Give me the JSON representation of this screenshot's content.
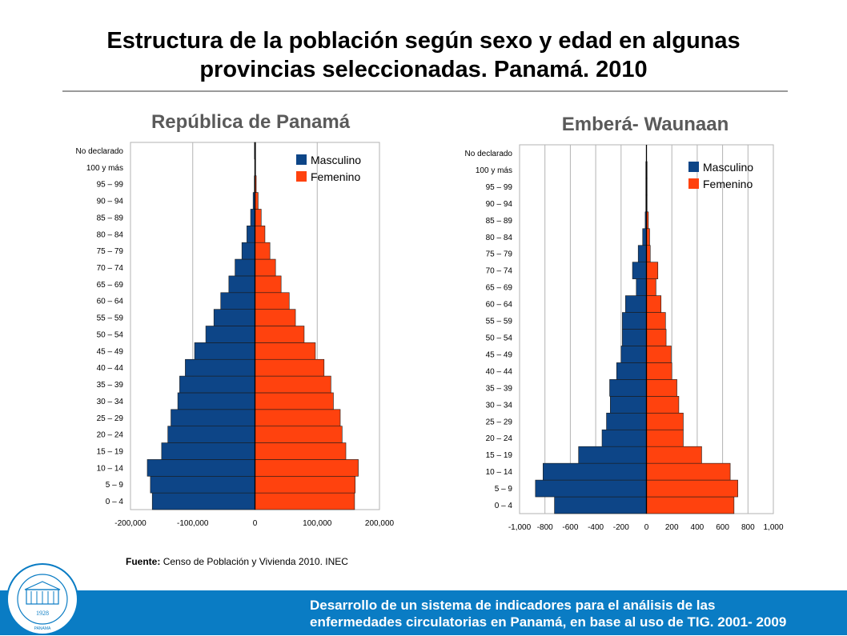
{
  "title_line1": "Estructura de la población según sexo y edad en algunas",
  "title_line2": "provincias seleccionadas. Panamá. 2010",
  "source_label": "Fuente:",
  "source_text": "Censo de Población y Vivienda  2010. INEC",
  "footer_line1": "Desarrollo de un sistema de indicadores para el análisis de las",
  "footer_line2": "enfermedades circulatorias en Panamá, en base al uso de TIG. 2001- 2009",
  "logo": {
    "ring_text": "INSTITUTO CONMEMORATIVO GORGAS DE ESTUDIOS DE LA SALUD",
    "year": "1928",
    "place": "PANAMA"
  },
  "colors": {
    "male": "#0d4587",
    "female": "#ff420e",
    "footer": "#0a7cc4"
  },
  "chart_data": [
    {
      "type": "bar",
      "orientation": "horizontal",
      "title": "República de Panamá",
      "categories": [
        "0 – 4",
        "5 – 9",
        "10 – 14",
        "15 – 19",
        "20 – 24",
        "25 – 29",
        "30 – 34",
        "35 – 39",
        "40 – 44",
        "45 – 49",
        "50 – 54",
        "55 – 59",
        "60 – 64",
        "65 – 69",
        "70 – 74",
        "75 – 79",
        "80 – 84",
        "85 – 89",
        "90 – 94",
        "95 – 99",
        "100 y más",
        "No declarado"
      ],
      "series": [
        {
          "name": "Masculino",
          "values": [
            -165000,
            -168000,
            -173000,
            -150000,
            -140000,
            -135000,
            -124000,
            -121000,
            -112000,
            -97000,
            -79000,
            -66000,
            -55000,
            -42000,
            -32000,
            -21000,
            -13000,
            -7000,
            -3000,
            -1000,
            -300,
            -800
          ]
        },
        {
          "name": "Femenino",
          "values": [
            160000,
            161000,
            166000,
            146000,
            140000,
            137000,
            126000,
            122000,
            111000,
            97000,
            79000,
            65000,
            55000,
            42000,
            33000,
            24000,
            16000,
            10000,
            5000,
            2000,
            600,
            800
          ]
        }
      ],
      "xlim": [
        -200000,
        200000
      ],
      "xticks": [
        -200000,
        -100000,
        0,
        100000,
        200000
      ],
      "xtick_labels": [
        "-200,000",
        "-100,000",
        "0",
        "100,000",
        "200,000"
      ],
      "legend": "top-right",
      "grid": true
    },
    {
      "type": "bar",
      "orientation": "horizontal",
      "title": "Emberá- Waunaan",
      "categories": [
        "0 – 4",
        "5 – 9",
        "10 – 14",
        "15 – 19",
        "20 – 24",
        "25 – 29",
        "30 – 34",
        "35 – 39",
        "40 – 44",
        "45 – 49",
        "50 – 54",
        "55 – 59",
        "60 – 64",
        "65 – 69",
        "70 – 74",
        "75 – 79",
        "80 – 84",
        "85 – 89",
        "90 – 94",
        "95 – 99",
        "100 y más",
        "No declarado"
      ],
      "series": [
        {
          "name": "Masculino",
          "values": [
            -725,
            -875,
            -815,
            -535,
            -350,
            -315,
            -285,
            -290,
            -235,
            -200,
            -190,
            -190,
            -165,
            -80,
            -110,
            -65,
            -30,
            -10,
            -5,
            -5,
            -5,
            0
          ]
        },
        {
          "name": "Femenino",
          "values": [
            690,
            720,
            660,
            435,
            290,
            290,
            255,
            240,
            200,
            195,
            155,
            150,
            115,
            75,
            90,
            30,
            25,
            15,
            5,
            5,
            3,
            0
          ]
        }
      ],
      "xlim": [
        -1000,
        1000
      ],
      "xticks": [
        -1000,
        -800,
        -600,
        -400,
        -200,
        0,
        200,
        400,
        600,
        800,
        1000
      ],
      "xtick_labels": [
        "-1,000",
        "-800",
        "-600",
        "-400",
        "-200",
        "0",
        "200",
        "400",
        "600",
        "800",
        "1,000"
      ],
      "legend": "top-right",
      "grid": true
    }
  ]
}
